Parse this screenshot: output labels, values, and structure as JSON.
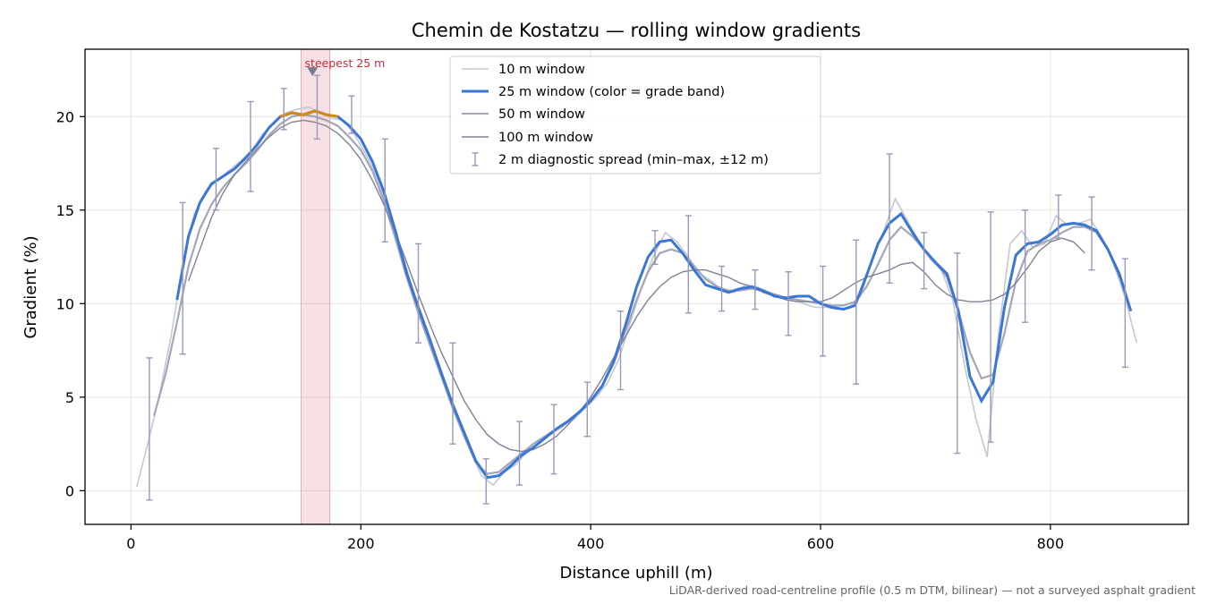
{
  "chart_data": {
    "type": "line",
    "title": "Chemin de Kostatzu — rolling window gradients",
    "xlabel": "Distance uphill (m)",
    "ylabel": "Gradient (%)",
    "xlim": [
      -40,
      920
    ],
    "ylim": [
      -1.8,
      23.6
    ],
    "xticks": [
      0,
      200,
      400,
      600,
      800
    ],
    "yticks": [
      0,
      5,
      10,
      15,
      20
    ],
    "grid": true,
    "legend_position": "top-center",
    "footnote": "LiDAR-derived road-centreline profile (0.5 m DTM, bilinear) — not a surveyed asphalt gradient",
    "highlight": {
      "label": "steepest 25 m",
      "x_range": [
        148,
        173
      ],
      "marker": {
        "x": 158,
        "y": 22.4
      },
      "color": "#d9737e"
    },
    "series": [
      {
        "name": "10 m window",
        "color": "#c3c9d3",
        "x": [
          5,
          15,
          25,
          35,
          45,
          55,
          65,
          75,
          85,
          95,
          105,
          115,
          125,
          135,
          145,
          155,
          165,
          175,
          185,
          195,
          205,
          215,
          225,
          235,
          245,
          255,
          265,
          275,
          285,
          295,
          305,
          315,
          325,
          335,
          345,
          355,
          365,
          375,
          385,
          395,
          405,
          415,
          425,
          435,
          445,
          455,
          465,
          475,
          485,
          495,
          505,
          515,
          525,
          535,
          545,
          555,
          565,
          575,
          585,
          595,
          605,
          615,
          625,
          635,
          645,
          655,
          665,
          675,
          685,
          695,
          705,
          715,
          725,
          735,
          745,
          755,
          765,
          775,
          785,
          795,
          805,
          815,
          825,
          835,
          845,
          855,
          865,
          875
        ],
        "values": [
          0.2,
          2.6,
          5.2,
          8.3,
          12.0,
          14.8,
          16.0,
          16.6,
          17.1,
          17.6,
          18.2,
          19.1,
          19.7,
          20.2,
          20.4,
          20.5,
          20.2,
          19.9,
          19.8,
          19.0,
          17.9,
          16.6,
          14.8,
          12.9,
          10.8,
          8.8,
          7.2,
          5.4,
          3.7,
          2.2,
          0.8,
          0.3,
          1.0,
          1.4,
          2.1,
          2.6,
          3.0,
          3.4,
          3.8,
          4.4,
          5.0,
          5.8,
          7.1,
          9.1,
          11.0,
          12.6,
          13.8,
          13.3,
          12.5,
          11.6,
          11.2,
          10.7,
          10.6,
          11.0,
          10.9,
          10.5,
          10.4,
          10.3,
          10.0,
          9.8,
          9.8,
          9.7,
          9.8,
          10.4,
          12.4,
          13.9,
          15.6,
          14.5,
          13.4,
          12.4,
          11.8,
          10.2,
          6.8,
          3.9,
          1.8,
          8.5,
          13.2,
          13.9,
          13.0,
          13.2,
          14.7,
          14.2,
          14.3,
          14.5,
          13.5,
          12.2,
          10.3,
          7.9
        ]
      },
      {
        "name": "25 m window (color = grade band)",
        "color": "#3a77d4",
        "band_color": "#d08a1a",
        "x": [
          40,
          50,
          60,
          70,
          80,
          90,
          100,
          110,
          120,
          130,
          140,
          150,
          160,
          170,
          180,
          190,
          200,
          210,
          220,
          230,
          240,
          250,
          260,
          270,
          280,
          290,
          300,
          310,
          320,
          330,
          340,
          350,
          360,
          370,
          380,
          390,
          400,
          410,
          420,
          430,
          440,
          450,
          460,
          470,
          480,
          490,
          500,
          510,
          520,
          530,
          540,
          550,
          560,
          570,
          580,
          590,
          600,
          610,
          620,
          630,
          640,
          650,
          660,
          670,
          680,
          690,
          700,
          710,
          720,
          730,
          740,
          750,
          760,
          770,
          780,
          790,
          800,
          810,
          820,
          830,
          840,
          850,
          860,
          870
        ],
        "values": [
          10.2,
          13.6,
          15.4,
          16.4,
          16.8,
          17.2,
          17.8,
          18.5,
          19.4,
          20.0,
          20.2,
          20.1,
          20.3,
          20.1,
          20.0,
          19.5,
          18.8,
          17.6,
          16.0,
          13.9,
          11.6,
          9.8,
          8.1,
          6.3,
          4.6,
          3.1,
          1.6,
          0.7,
          0.8,
          1.3,
          1.9,
          2.3,
          2.8,
          3.3,
          3.7,
          4.2,
          4.8,
          5.6,
          6.9,
          8.8,
          10.9,
          12.5,
          13.3,
          13.4,
          12.7,
          11.8,
          11.0,
          10.8,
          10.6,
          10.8,
          10.9,
          10.7,
          10.4,
          10.3,
          10.4,
          10.4,
          10.0,
          9.8,
          9.7,
          9.9,
          11.5,
          13.2,
          14.3,
          14.8,
          13.8,
          12.9,
          12.2,
          11.6,
          9.6,
          6.1,
          4.8,
          5.8,
          9.8,
          12.6,
          13.2,
          13.3,
          13.7,
          14.2,
          14.3,
          14.2,
          13.9,
          12.9,
          11.6,
          9.6
        ]
      },
      {
        "name": "50 m window",
        "color": "#a1a6b8",
        "x": [
          20,
          30,
          40,
          50,
          60,
          70,
          80,
          90,
          100,
          110,
          120,
          130,
          140,
          150,
          160,
          170,
          180,
          190,
          200,
          210,
          220,
          230,
          240,
          250,
          260,
          270,
          280,
          290,
          300,
          310,
          320,
          330,
          340,
          350,
          360,
          370,
          380,
          390,
          400,
          410,
          420,
          430,
          440,
          450,
          460,
          470,
          480,
          490,
          500,
          510,
          520,
          530,
          540,
          550,
          560,
          570,
          580,
          590,
          600,
          610,
          620,
          630,
          640,
          650,
          660,
          670,
          680,
          690,
          700,
          710,
          720,
          730,
          740,
          750,
          760,
          770,
          780,
          790,
          800,
          810,
          820,
          830,
          840,
          850,
          860
        ],
        "values": [
          4.0,
          6.2,
          9.0,
          12.0,
          14.0,
          15.3,
          16.2,
          16.9,
          17.5,
          18.2,
          19.0,
          19.6,
          20.0,
          20.1,
          20.0,
          19.8,
          19.5,
          18.9,
          18.2,
          17.1,
          15.5,
          13.5,
          11.4,
          9.5,
          7.8,
          6.1,
          4.4,
          2.9,
          1.5,
          0.9,
          1.0,
          1.5,
          2.0,
          2.5,
          2.9,
          3.3,
          3.7,
          4.2,
          4.8,
          5.6,
          6.8,
          8.5,
          10.2,
          11.7,
          12.7,
          12.9,
          12.7,
          12.0,
          11.3,
          10.9,
          10.7,
          10.7,
          10.8,
          10.7,
          10.5,
          10.3,
          10.2,
          10.1,
          10.0,
          9.9,
          9.9,
          10.1,
          10.9,
          12.1,
          13.4,
          14.1,
          13.6,
          12.9,
          12.2,
          11.4,
          9.6,
          7.4,
          6.0,
          6.2,
          8.4,
          11.2,
          12.8,
          13.2,
          13.4,
          13.8,
          14.1,
          14.1,
          13.8,
          12.9,
          11.4
        ]
      },
      {
        "name": "100 m window",
        "color": "#7f8294",
        "x": [
          50,
          60,
          70,
          80,
          90,
          100,
          110,
          120,
          130,
          140,
          150,
          160,
          170,
          180,
          190,
          200,
          210,
          220,
          230,
          240,
          250,
          260,
          270,
          280,
          290,
          300,
          310,
          320,
          330,
          340,
          350,
          360,
          370,
          380,
          390,
          400,
          410,
          420,
          430,
          440,
          450,
          460,
          470,
          480,
          490,
          500,
          510,
          520,
          530,
          540,
          550,
          560,
          570,
          580,
          590,
          600,
          610,
          620,
          630,
          640,
          650,
          660,
          670,
          680,
          690,
          700,
          710,
          720,
          730,
          740,
          750,
          760,
          770,
          780,
          790,
          800,
          810,
          820,
          830
        ],
        "values": [
          11.2,
          12.9,
          14.6,
          15.9,
          16.9,
          17.6,
          18.3,
          18.9,
          19.4,
          19.7,
          19.8,
          19.7,
          19.5,
          19.1,
          18.5,
          17.7,
          16.6,
          15.3,
          13.8,
          12.2,
          10.5,
          8.9,
          7.4,
          6.1,
          4.8,
          3.8,
          3.0,
          2.5,
          2.2,
          2.1,
          2.2,
          2.5,
          2.9,
          3.5,
          4.2,
          5.0,
          6.0,
          7.1,
          8.2,
          9.3,
          10.2,
          10.9,
          11.4,
          11.7,
          11.8,
          11.8,
          11.6,
          11.4,
          11.1,
          10.9,
          10.6,
          10.4,
          10.2,
          10.1,
          10.1,
          10.1,
          10.3,
          10.7,
          11.1,
          11.4,
          11.6,
          11.8,
          12.1,
          12.2,
          11.7,
          11.0,
          10.5,
          10.2,
          10.1,
          10.1,
          10.2,
          10.5,
          11.1,
          11.9,
          12.8,
          13.3,
          13.5,
          13.3,
          12.7
        ]
      },
      {
        "name": "2 m diagnostic spread (min–max, ±12 m)",
        "type": "errorbar",
        "color": "#9a97b7",
        "x": [
          16,
          45,
          74,
          104,
          133,
          162,
          192,
          221,
          250,
          280,
          309,
          338,
          368,
          397,
          426,
          456,
          485,
          514,
          543,
          572,
          602,
          631,
          660,
          690,
          719,
          748,
          778,
          807,
          836,
          865
        ],
        "y": [
          2.6,
          11.8,
          16.4,
          17.3,
          20.0,
          20.2,
          19.9,
          16.3,
          10.3,
          5.2,
          1.2,
          1.8,
          3.5,
          4.6,
          7.5,
          12.3,
          12.2,
          10.9,
          10.8,
          10.3,
          10.0,
          9.9,
          14.5,
          11.8,
          7.5,
          9.0,
          13.1,
          14.7,
          13.8,
          9.7
        ],
        "low": [
          -0.5,
          7.3,
          15.0,
          16.0,
          19.3,
          18.8,
          19.1,
          13.3,
          7.9,
          2.5,
          -0.7,
          0.3,
          0.9,
          2.9,
          5.4,
          12.1,
          9.5,
          9.6,
          9.7,
          8.3,
          7.2,
          5.7,
          11.1,
          10.8,
          2.0,
          2.6,
          9.0,
          13.5,
          11.8,
          6.6
        ],
        "high": [
          7.1,
          15.4,
          18.3,
          20.8,
          21.5,
          22.2,
          21.1,
          18.8,
          13.2,
          7.9,
          1.7,
          3.7,
          4.6,
          5.8,
          9.6,
          13.9,
          14.7,
          12.0,
          11.8,
          11.7,
          12.0,
          13.4,
          18.0,
          13.8,
          12.7,
          14.9,
          15.0,
          15.8,
          15.7,
          12.4
        ]
      }
    ]
  }
}
